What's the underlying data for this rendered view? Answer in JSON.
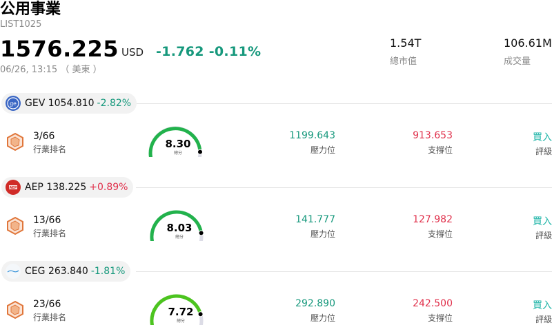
{
  "header": {
    "title": "公用事業",
    "code": "LIST1025",
    "price": "1576.225",
    "currency": "USD",
    "change": "-1.762",
    "change_pct": "-0.11%",
    "timestamp": "06/26, 13:15 （ 美東 ）",
    "market_cap": "1.54T",
    "market_cap_label": "總市值",
    "volume": "106.61M",
    "volume_label": "成交量"
  },
  "stocks": [
    {
      "symbol": "GEV",
      "price": "1054.810",
      "change_pct": "-2.82%",
      "direction": "down",
      "rank": "3/66",
      "rank_label": "行業排名",
      "score": "8.30",
      "score_unit": "總分",
      "score_fraction": 0.83,
      "gauge_color": "#22b24c",
      "resistance": "1199.643",
      "resistance_label": "壓力位",
      "support": "913.653",
      "support_label": "支撐位",
      "rating": "買入",
      "rating_label": "評級",
      "logo_icon": "ge-logo-icon"
    },
    {
      "symbol": "AEP",
      "price": "138.225",
      "change_pct": "+0.89%",
      "direction": "up",
      "rank": "13/66",
      "rank_label": "行業排名",
      "score": "8.03",
      "score_unit": "總分",
      "score_fraction": 0.8,
      "gauge_color": "#22b24c",
      "resistance": "141.777",
      "resistance_label": "壓力位",
      "support": "127.982",
      "support_label": "支撐位",
      "rating": "買入",
      "rating_label": "評級",
      "logo_icon": "aep-logo-icon"
    },
    {
      "symbol": "CEG",
      "price": "263.840",
      "change_pct": "-1.81%",
      "direction": "down",
      "rank": "23/66",
      "rank_label": "行業排名",
      "score": "7.72",
      "score_unit": "總分",
      "score_fraction": 0.77,
      "gauge_color": "#4cc41f",
      "resistance": "292.890",
      "resistance_label": "壓力位",
      "support": "242.500",
      "support_label": "支撐位",
      "rating": "買入",
      "rating_label": "評級",
      "logo_icon": "constellation-logo-icon"
    }
  ],
  "colors": {
    "down": "#16987c",
    "up": "#e0304b",
    "rating": "#1fb5a8",
    "gauge_track": "#dcdce6"
  }
}
